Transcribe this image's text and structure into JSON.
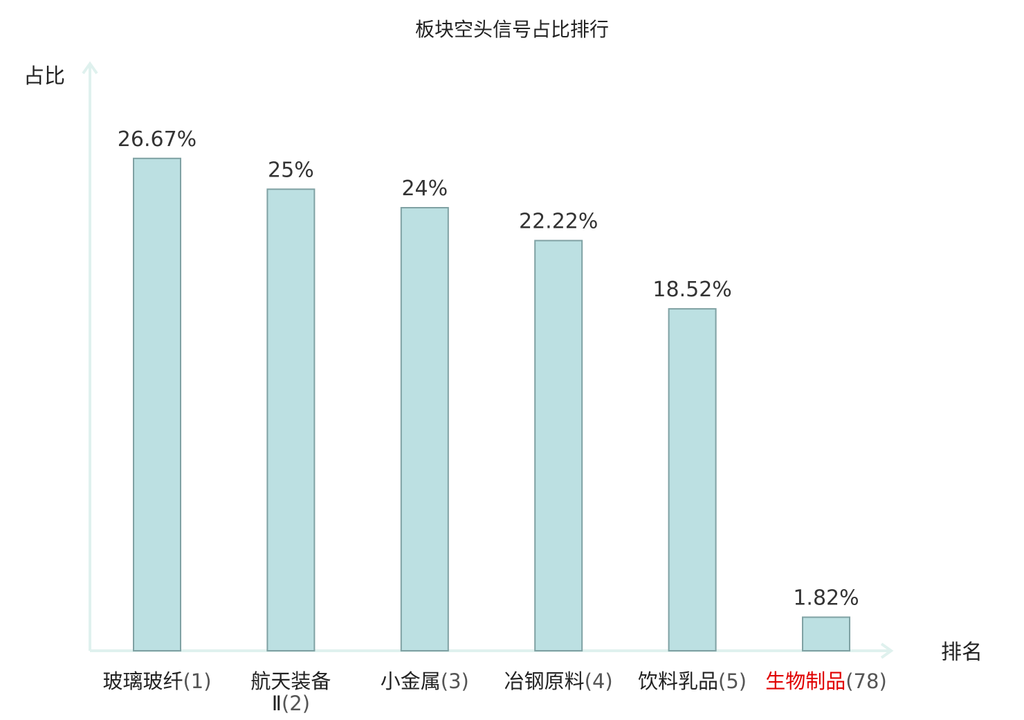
{
  "chart_data": {
    "type": "bar",
    "title": "板块空头信号占比排行",
    "ylabel": "占比",
    "xlabel": "排名",
    "categories": [
      {
        "name": "玻璃玻纤",
        "rank": "(1)",
        "highlight": false
      },
      {
        "name": "航天装备Ⅱ",
        "rank": "(2)",
        "highlight": false
      },
      {
        "name": "小金属",
        "rank": "(3)",
        "highlight": false
      },
      {
        "name": "冶钢原料",
        "rank": "(4)",
        "highlight": false
      },
      {
        "name": "饮料乳品",
        "rank": "(5)",
        "highlight": false
      },
      {
        "name": "生物制品",
        "rank": "(78)",
        "highlight": true
      }
    ],
    "values": [
      26.67,
      25,
      24,
      22.22,
      18.52,
      1.82
    ],
    "value_labels": [
      "26.67%",
      "25%",
      "24%",
      "22.22%",
      "18.52%",
      "1.82%"
    ],
    "ylim": [
      0,
      30
    ],
    "grid": false,
    "legend": "none",
    "colors": {
      "bar_fill": "#bce0e2",
      "bar_stroke": "#7fa1a3",
      "axis": "#dff1ee",
      "highlight": "#e00000",
      "text": "#222222"
    }
  }
}
